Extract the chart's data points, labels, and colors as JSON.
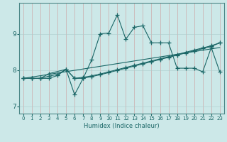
{
  "title": "",
  "xlabel": "Humidex (Indice chaleur)",
  "bg_color": "#cce8e8",
  "grid_color": "#aacccc",
  "line_color": "#1a6666",
  "xlim": [
    -0.5,
    23.5
  ],
  "ylim": [
    6.8,
    9.85
  ],
  "xticks": [
    0,
    1,
    2,
    3,
    4,
    5,
    6,
    7,
    8,
    9,
    10,
    11,
    12,
    13,
    14,
    15,
    16,
    17,
    18,
    19,
    20,
    21,
    22,
    23
  ],
  "yticks": [
    7,
    8,
    9
  ],
  "line1_x": [
    0,
    1,
    2,
    3,
    4,
    5,
    6,
    7,
    8,
    9,
    10,
    11,
    12,
    13,
    14,
    15,
    16,
    17,
    18,
    19,
    20,
    21,
    22,
    23
  ],
  "line1_y": [
    7.77,
    7.77,
    7.77,
    7.77,
    7.85,
    8.02,
    7.32,
    7.77,
    8.28,
    9.0,
    9.02,
    9.52,
    8.85,
    9.18,
    9.22,
    8.75,
    8.75,
    8.75,
    8.05,
    8.05,
    8.05,
    7.95,
    8.62,
    7.95
  ],
  "line2_x": [
    0,
    1,
    2,
    3,
    5,
    6,
    7,
    8,
    9,
    10,
    11,
    12,
    13,
    14,
    15,
    16,
    17,
    18,
    19,
    20,
    21,
    22,
    23
  ],
  "line2_y": [
    7.77,
    7.77,
    7.77,
    7.9,
    8.02,
    7.77,
    7.77,
    7.82,
    7.87,
    7.93,
    7.99,
    8.05,
    8.11,
    8.17,
    8.23,
    8.29,
    8.35,
    8.41,
    8.47,
    8.53,
    8.59,
    8.65,
    8.75
  ],
  "line3_x": [
    0,
    1,
    2,
    3,
    4,
    5,
    6,
    7,
    8,
    9,
    10,
    11,
    12,
    13,
    14,
    15,
    16,
    17,
    18,
    19,
    20,
    21,
    22,
    23
  ],
  "line3_y": [
    7.77,
    7.77,
    7.77,
    7.83,
    7.88,
    8.02,
    7.77,
    7.8,
    7.84,
    7.89,
    7.95,
    8.01,
    8.07,
    8.13,
    8.19,
    8.25,
    8.31,
    8.37,
    8.43,
    8.49,
    8.55,
    8.61,
    8.67,
    8.75
  ],
  "line4_x": [
    0,
    23
  ],
  "line4_y": [
    7.77,
    8.62
  ]
}
